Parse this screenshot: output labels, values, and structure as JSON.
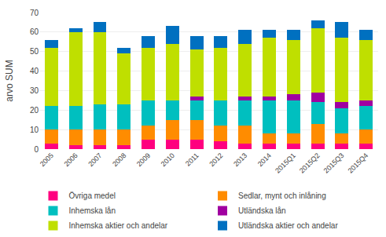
{
  "chart_data": {
    "type": "bar",
    "stacked": true,
    "categories": [
      "2005",
      "2006",
      "2007",
      "2008",
      "2009",
      "2010",
      "2011",
      "2012",
      "2013",
      "2014",
      "2015Q1",
      "2015Q2",
      "2015Q3",
      "2015Q4"
    ],
    "series": [
      {
        "name": "Övriga medel",
        "color": "#FF007F",
        "values": [
          3,
          2,
          2,
          2,
          5,
          5,
          5,
          4,
          3,
          3,
          3,
          3,
          3,
          3
        ]
      },
      {
        "name": "Sedlar, mynt och inlåning",
        "color": "#FF8C00",
        "values": [
          7,
          8,
          8,
          8,
          7,
          10,
          10,
          8,
          9,
          5,
          5,
          10,
          5,
          7
        ]
      },
      {
        "name": "Inhemska lån",
        "color": "#00BFBF",
        "values": [
          12,
          12,
          13,
          13,
          13,
          10,
          10,
          13,
          13,
          17,
          17,
          11,
          13,
          12
        ]
      },
      {
        "name": "Utländska lån",
        "color": "#A000A0",
        "values": [
          0,
          0,
          0,
          0,
          0,
          0,
          2,
          0,
          2,
          2,
          3,
          5,
          3,
          3
        ]
      },
      {
        "name": "Inhemska aktier och andelar",
        "color": "#BFDF00",
        "values": [
          30,
          38,
          37,
          26,
          27,
          29,
          24,
          27,
          27,
          30,
          28,
          33,
          33,
          31
        ]
      },
      {
        "name": "Utländska aktier och andelar",
        "color": "#0070C0",
        "values": [
          4,
          2,
          5,
          3,
          6,
          9,
          7,
          6,
          7,
          4,
          5,
          4,
          8,
          5
        ]
      }
    ],
    "ylabel": "arvo SUM",
    "ylim": [
      0,
      70
    ],
    "yticks": [
      0,
      10,
      20,
      30,
      40,
      50,
      60,
      70
    ],
    "grid": true,
    "legend": "bottom"
  }
}
